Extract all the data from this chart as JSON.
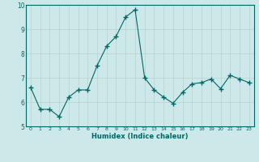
{
  "x": [
    0,
    1,
    2,
    3,
    4,
    5,
    6,
    7,
    8,
    9,
    10,
    11,
    12,
    13,
    14,
    15,
    16,
    17,
    18,
    19,
    20,
    21,
    22,
    23
  ],
  "y": [
    6.6,
    5.7,
    5.7,
    5.4,
    6.2,
    6.5,
    6.5,
    7.5,
    8.3,
    8.7,
    9.5,
    9.8,
    7.0,
    6.5,
    6.2,
    5.95,
    6.4,
    6.75,
    6.8,
    6.95,
    6.55,
    7.1,
    6.95,
    6.8
  ],
  "xlabel": "Humidex (Indice chaleur)",
  "ylim": [
    5,
    10
  ],
  "xlim": [
    -0.5,
    23.5
  ],
  "yticks": [
    5,
    6,
    7,
    8,
    9,
    10
  ],
  "xticks": [
    0,
    1,
    2,
    3,
    4,
    5,
    6,
    7,
    8,
    9,
    10,
    11,
    12,
    13,
    14,
    15,
    16,
    17,
    18,
    19,
    20,
    21,
    22,
    23
  ],
  "line_color": "#006666",
  "marker_color": "#006666",
  "bg_color": "#cce8e8",
  "grid_color": "#b8d0d0",
  "border_color": "#006666",
  "tick_label_color": "#006666",
  "xlabel_color": "#006666"
}
